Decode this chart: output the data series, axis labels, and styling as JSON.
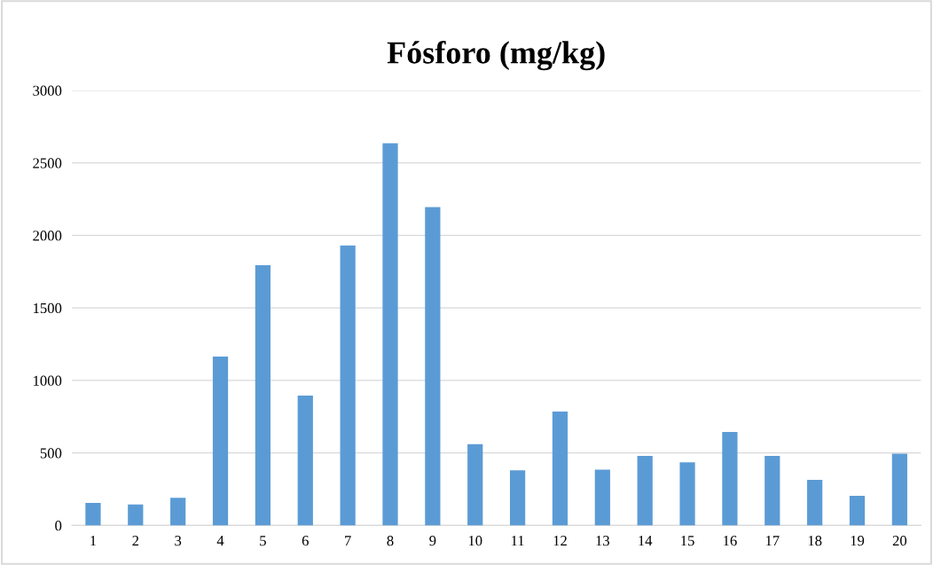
{
  "chart_data": {
    "type": "bar",
    "title": "Fósforo (mg/kg)",
    "categories": [
      "1",
      "2",
      "3",
      "4",
      "5",
      "6",
      "7",
      "8",
      "9",
      "10",
      "11",
      "12",
      "13",
      "14",
      "15",
      "16",
      "17",
      "18",
      "19",
      "20"
    ],
    "values": [
      155,
      145,
      190,
      1165,
      1795,
      895,
      1930,
      2635,
      2195,
      560,
      380,
      785,
      385,
      480,
      435,
      645,
      480,
      315,
      205,
      495
    ],
    "color": "#5b9bd5",
    "ylim": [
      0,
      3000
    ],
    "yticks": [
      0,
      500,
      1000,
      1500,
      2000,
      2500,
      3000
    ],
    "grid": "y"
  }
}
